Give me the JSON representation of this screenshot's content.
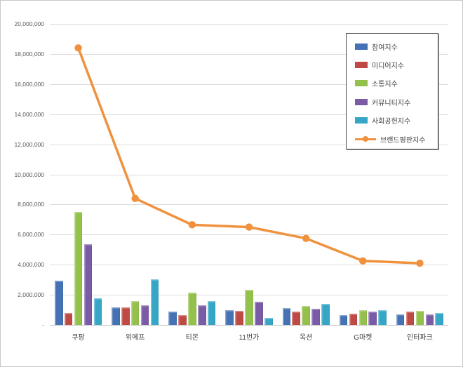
{
  "chart_data": {
    "type": "bar",
    "combo": "bar+line",
    "title": "",
    "xlabel": "",
    "ylabel": "",
    "categories": [
      "쿠팡",
      "위메프",
      "티몬",
      "11번가",
      "옥션",
      "G마켓",
      "인터파크"
    ],
    "series": [
      {
        "name": "참여지수",
        "kind": "bar",
        "color": "#4472b4",
        "values": [
          2950000,
          1150000,
          900000,
          1000000,
          1100000,
          650000,
          700000
        ]
      },
      {
        "name": "미디어지수",
        "kind": "bar",
        "color": "#bf4a45",
        "values": [
          800000,
          1150000,
          650000,
          950000,
          900000,
          750000,
          900000
        ]
      },
      {
        "name": "소통지수",
        "kind": "bar",
        "color": "#94c14c",
        "values": [
          7500000,
          1600000,
          2150000,
          2350000,
          1250000,
          1000000,
          950000
        ]
      },
      {
        "name": "커뮤니티지수",
        "kind": "bar",
        "color": "#7a5ba5",
        "values": [
          5350000,
          1300000,
          1300000,
          1550000,
          1050000,
          900000,
          700000
        ]
      },
      {
        "name": "사회공헌지수",
        "kind": "bar",
        "color": "#35a6c6",
        "values": [
          1750000,
          3050000,
          1600000,
          450000,
          1400000,
          1000000,
          800000
        ]
      },
      {
        "name": "브랜드평판지수",
        "kind": "line",
        "color": "#f0923d",
        "values": [
          18400000,
          8400000,
          6650000,
          6500000,
          5750000,
          4250000,
          4100000
        ]
      }
    ],
    "ylim": [
      0,
      20000000
    ],
    "ytick_step": 2000000,
    "ytick_labels": [
      "-",
      "2,000,000",
      "4,000,000",
      "6,000,000",
      "8,000,000",
      "10,000,000",
      "12,000,000",
      "14,000,000",
      "16,000,000",
      "18,000,000",
      "20,000,000"
    ],
    "grid": true,
    "legend_position": "top-right"
  }
}
